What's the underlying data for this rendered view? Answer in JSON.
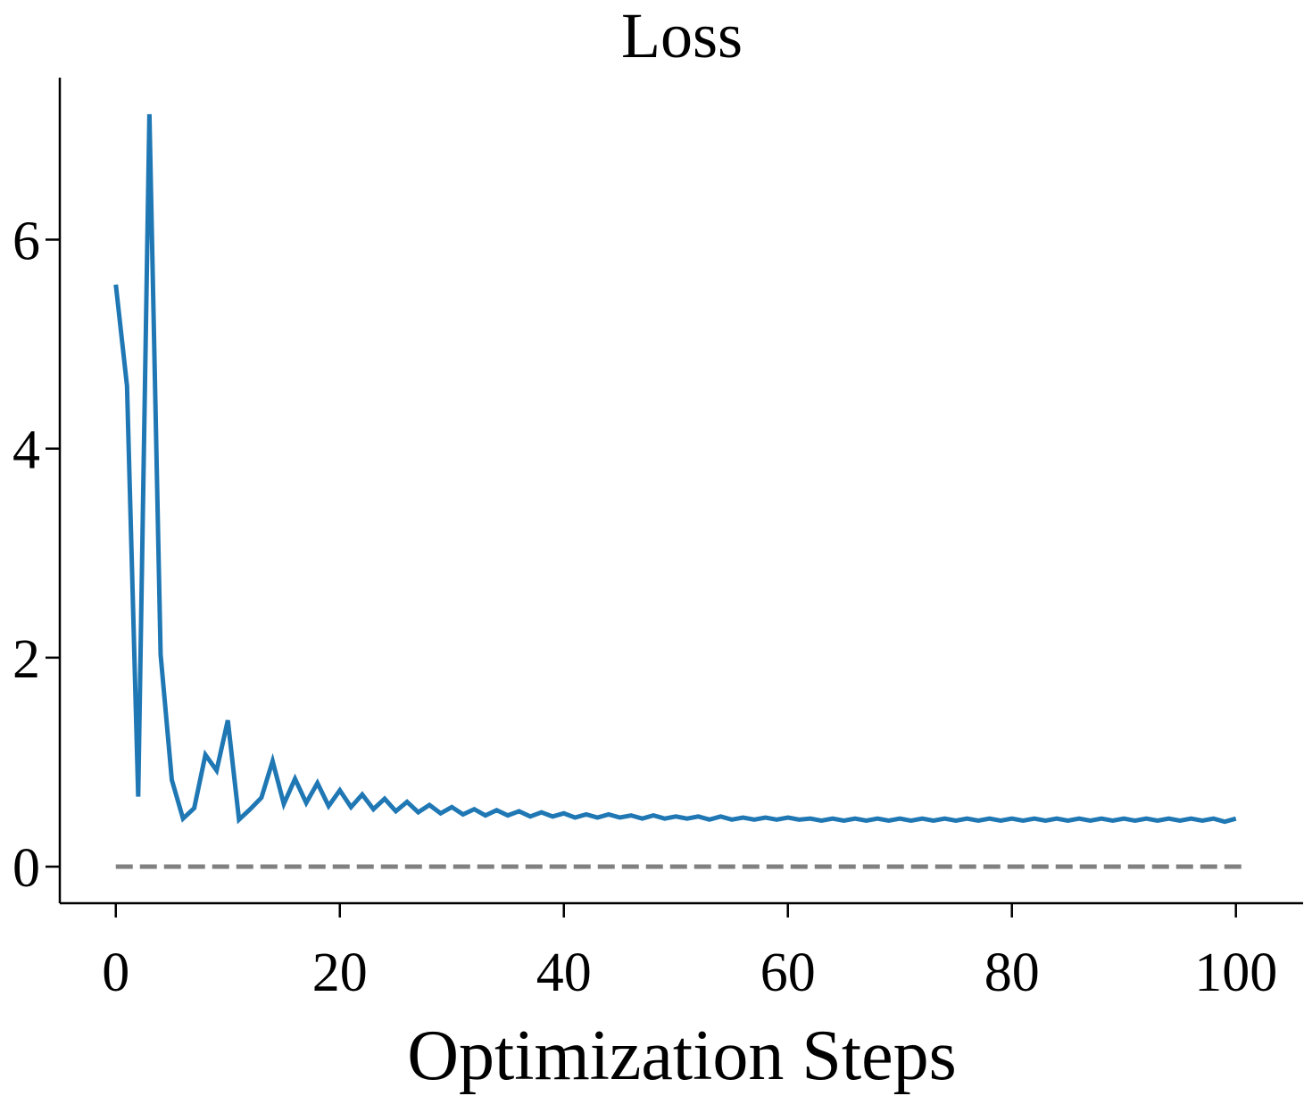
{
  "chart_data": {
    "type": "line",
    "title": "Loss",
    "xlabel": "Optimization Steps",
    "ylabel": "",
    "xlim": [
      -5,
      106
    ],
    "ylim": [
      -0.35,
      7.55
    ],
    "xticks": [
      0,
      20,
      40,
      60,
      80,
      100
    ],
    "yticks": [
      0,
      2,
      4,
      6
    ],
    "grid": false,
    "legend": "none",
    "series": [
      {
        "color": "#1f77b4",
        "x": [
          0,
          1,
          2,
          3,
          4,
          5,
          6,
          7,
          8,
          9,
          10,
          11,
          12,
          13,
          14,
          15,
          16,
          17,
          18,
          19,
          20,
          21,
          22,
          23,
          24,
          25,
          26,
          27,
          28,
          29,
          30,
          31,
          32,
          33,
          34,
          35,
          36,
          37,
          38,
          39,
          40,
          41,
          42,
          43,
          44,
          45,
          46,
          47,
          48,
          49,
          50,
          51,
          52,
          53,
          54,
          55,
          56,
          57,
          58,
          59,
          60,
          61,
          62,
          63,
          64,
          65,
          66,
          67,
          68,
          69,
          70,
          71,
          72,
          73,
          74,
          75,
          76,
          77,
          78,
          79,
          80,
          81,
          82,
          83,
          84,
          85,
          86,
          87,
          88,
          89,
          90,
          91,
          92,
          93,
          94,
          95,
          96,
          97,
          98,
          99,
          100
        ],
        "values": [
          5.57,
          4.6,
          0.67,
          7.2,
          2.03,
          0.83,
          0.46,
          0.56,
          1.07,
          0.92,
          1.4,
          0.45,
          0.55,
          0.66,
          1.01,
          0.6,
          0.84,
          0.61,
          0.8,
          0.58,
          0.73,
          0.57,
          0.69,
          0.55,
          0.65,
          0.53,
          0.62,
          0.52,
          0.59,
          0.51,
          0.57,
          0.5,
          0.55,
          0.49,
          0.54,
          0.49,
          0.53,
          0.48,
          0.52,
          0.48,
          0.51,
          0.47,
          0.5,
          0.47,
          0.5,
          0.47,
          0.49,
          0.46,
          0.49,
          0.46,
          0.48,
          0.46,
          0.48,
          0.45,
          0.48,
          0.45,
          0.47,
          0.45,
          0.47,
          0.45,
          0.47,
          0.45,
          0.46,
          0.44,
          0.46,
          0.44,
          0.46,
          0.44,
          0.46,
          0.44,
          0.46,
          0.44,
          0.46,
          0.44,
          0.46,
          0.44,
          0.46,
          0.44,
          0.46,
          0.44,
          0.46,
          0.44,
          0.46,
          0.44,
          0.46,
          0.44,
          0.46,
          0.44,
          0.46,
          0.44,
          0.46,
          0.44,
          0.46,
          0.44,
          0.46,
          0.44,
          0.46,
          0.44,
          0.46,
          0.43,
          0.46
        ]
      },
      {
        "color": "#808080",
        "style": "dashed",
        "x": [
          0,
          101
        ],
        "values": [
          0,
          0
        ]
      }
    ]
  }
}
